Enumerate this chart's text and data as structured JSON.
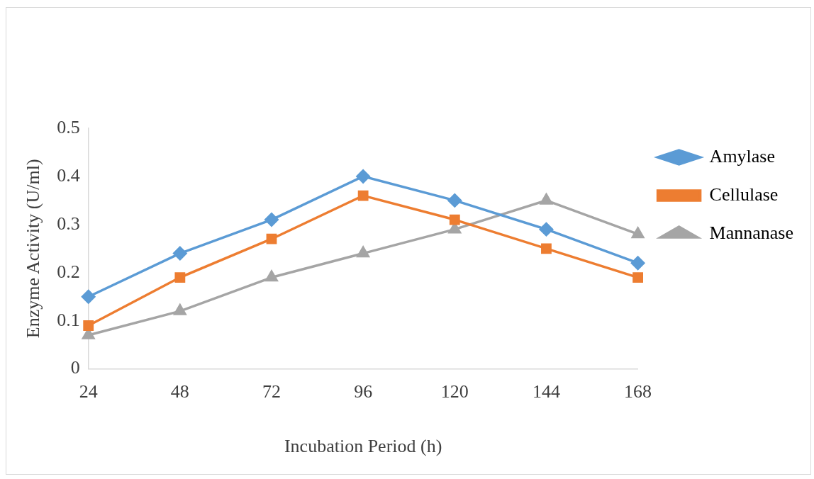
{
  "chart_data": {
    "type": "line",
    "xlabel": "Incubation Period (h)",
    "ylabel": "Enzyme Activity (U/ml)",
    "categories": [
      "24",
      "48",
      "72",
      "96",
      "120",
      "144",
      "168"
    ],
    "series": [
      {
        "name": "Amylase",
        "color": "#5b9bd5",
        "marker": "diamond",
        "values": [
          0.15,
          0.24,
          0.31,
          0.4,
          0.35,
          0.29,
          0.22
        ]
      },
      {
        "name": "Cellulase",
        "color": "#ed7d31",
        "marker": "square",
        "values": [
          0.09,
          0.19,
          0.27,
          0.36,
          0.31,
          0.25,
          0.19
        ]
      },
      {
        "name": "Mannanase",
        "color": "#a5a5a5",
        "marker": "triangle",
        "values": [
          0.07,
          0.12,
          0.19,
          0.24,
          0.29,
          0.35,
          0.28
        ]
      }
    ],
    "ylim": [
      0,
      0.5
    ],
    "yticks": [
      0,
      0.1,
      0.2,
      0.3,
      0.4,
      0.5
    ],
    "grid": false,
    "legend": "right",
    "line_style": "solid"
  }
}
